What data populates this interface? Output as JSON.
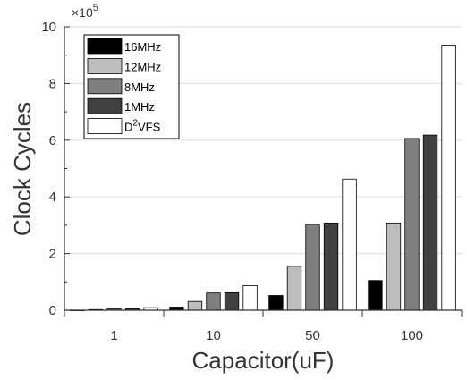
{
  "chart_data": {
    "type": "bar",
    "categories": [
      "1",
      "10",
      "50",
      "100"
    ],
    "series": [
      {
        "name": "16MHz",
        "color": "#000000",
        "values": [
          0.0018,
          0.11,
          0.52,
          1.05
        ]
      },
      {
        "name": "12MHz",
        "color": "#bdbdbd",
        "values": [
          0.024,
          0.31,
          1.55,
          3.08
        ]
      },
      {
        "name": "8MHz",
        "color": "#7f7f7f",
        "values": [
          0.047,
          0.61,
          3.03,
          6.06
        ]
      },
      {
        "name": "1MHz",
        "color": "#404040",
        "values": [
          0.048,
          0.62,
          3.08,
          6.18
        ]
      },
      {
        "name": "D2VFS",
        "color": "#ffffff",
        "values": [
          0.09,
          0.87,
          4.63,
          9.35
        ]
      }
    ],
    "legend_labels": [
      {
        "main": "16MHz",
        "sup": "",
        "tail": ""
      },
      {
        "main": "12MHz",
        "sup": "",
        "tail": ""
      },
      {
        "main": "8MHz",
        "sup": "",
        "tail": ""
      },
      {
        "main": "1MHz",
        "sup": "",
        "tail": ""
      },
      {
        "main": "D",
        "sup": "2",
        "tail": "VFS"
      }
    ],
    "xlabel": "Capacitor(uF)",
    "ylabel": "Clock Cycles",
    "ylim": [
      0,
      10
    ],
    "yticks": [
      "0",
      "2",
      "4",
      "6",
      "8",
      "10"
    ],
    "ytick_values": [
      0,
      2,
      4,
      6,
      8,
      10
    ],
    "y_multiplier": {
      "base": "×10",
      "exponent": "5"
    },
    "grid": "horizontal",
    "legend_position": "top-left"
  }
}
